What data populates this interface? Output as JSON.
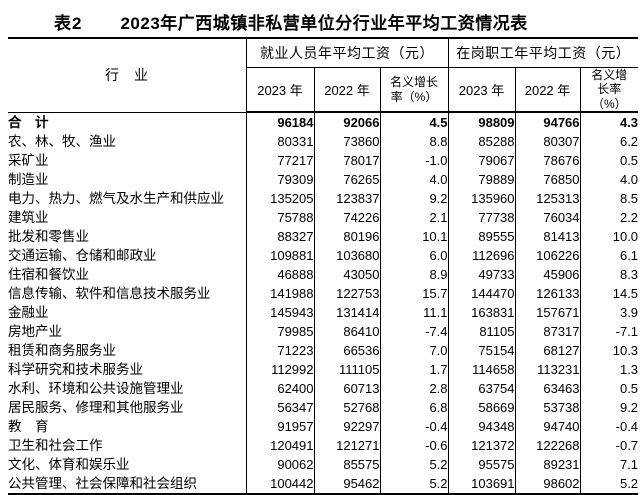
{
  "chart_data": {
    "type": "table",
    "table_tag": "表2",
    "title": "2023年广西城镇非私营单位分行业年平均工资情况表",
    "industry_header": "行　业",
    "column_groups": [
      "就业人员年平均工资（元）",
      "在岗职工年平均工资（元）"
    ],
    "sub_columns": [
      "2023 年",
      "2022 年",
      "名义增长率（%）",
      "2023 年",
      "2022 年",
      "名义增长率（%）"
    ],
    "rows": [
      {
        "industry": "合　计",
        "bold": true,
        "values": [
          "96184",
          "92066",
          "4.5",
          "98809",
          "94766",
          "4.3"
        ]
      },
      {
        "industry": "农、林、牧、渔业",
        "values": [
          "80331",
          "73860",
          "8.8",
          "85288",
          "80307",
          "6.2"
        ]
      },
      {
        "industry": "采矿业",
        "values": [
          "77217",
          "78017",
          "-1.0",
          "79067",
          "78676",
          "0.5"
        ]
      },
      {
        "industry": "制造业",
        "values": [
          "79309",
          "76265",
          "4.0",
          "79889",
          "76850",
          "4.0"
        ]
      },
      {
        "industry": "电力、热力、燃气及水生产和供应业",
        "values": [
          "135205",
          "123837",
          "9.2",
          "135960",
          "125313",
          "8.5"
        ]
      },
      {
        "industry": "建筑业",
        "values": [
          "75788",
          "74226",
          "2.1",
          "77738",
          "76034",
          "2.2"
        ]
      },
      {
        "industry": "批发和零售业",
        "values": [
          "88327",
          "80196",
          "10.1",
          "89555",
          "81413",
          "10.0"
        ]
      },
      {
        "industry": "交通运输、仓储和邮政业",
        "values": [
          "109881",
          "103680",
          "6.0",
          "112696",
          "106226",
          "6.1"
        ]
      },
      {
        "industry": "住宿和餐饮业",
        "values": [
          "46888",
          "43050",
          "8.9",
          "49733",
          "45906",
          "8.3"
        ]
      },
      {
        "industry": "信息传输、软件和信息技术服务业",
        "values": [
          "141988",
          "122753",
          "15.7",
          "144470",
          "126133",
          "14.5"
        ]
      },
      {
        "industry": "金融业",
        "values": [
          "145943",
          "131414",
          "11.1",
          "163831",
          "157671",
          "3.9"
        ]
      },
      {
        "industry": "房地产业",
        "values": [
          "79985",
          "86410",
          "-7.4",
          "81105",
          "87317",
          "-7.1"
        ]
      },
      {
        "industry": "租赁和商务服务业",
        "values": [
          "71223",
          "66536",
          "7.0",
          "75154",
          "68127",
          "10.3"
        ]
      },
      {
        "industry": "科学研究和技术服务业",
        "values": [
          "112992",
          "111105",
          "1.7",
          "114658",
          "113231",
          "1.3"
        ]
      },
      {
        "industry": "水利、环境和公共设施管理业",
        "values": [
          "62400",
          "60713",
          "2.8",
          "63754",
          "63463",
          "0.5"
        ]
      },
      {
        "industry": "居民服务、修理和其他服务业",
        "values": [
          "56347",
          "52768",
          "6.8",
          "58669",
          "53738",
          "9.2"
        ]
      },
      {
        "industry": "教　育",
        "values": [
          "91957",
          "92297",
          "-0.4",
          "94348",
          "94740",
          "-0.4"
        ]
      },
      {
        "industry": "卫生和社会工作",
        "values": [
          "120491",
          "121271",
          "-0.6",
          "121372",
          "122268",
          "-0.7"
        ]
      },
      {
        "industry": "文化、体育和娱乐业",
        "values": [
          "90062",
          "85575",
          "5.2",
          "95575",
          "89231",
          "7.1"
        ]
      },
      {
        "industry": "公共管理、社会保障和社会组织",
        "values": [
          "100442",
          "95462",
          "5.2",
          "103691",
          "98602",
          "5.2"
        ]
      }
    ]
  }
}
